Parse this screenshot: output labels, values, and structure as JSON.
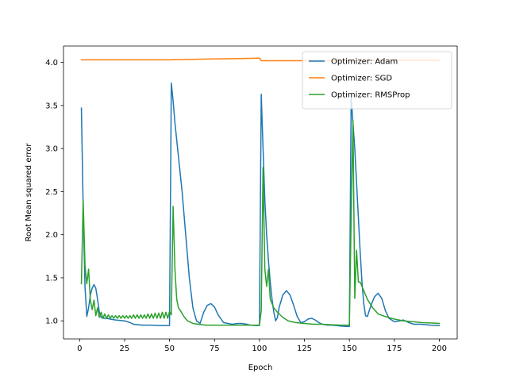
{
  "chart_data": {
    "type": "line",
    "title": "",
    "xlabel": "Epoch",
    "ylabel": "Root Mean squared error",
    "xlim": [
      -8.95,
      209.95
    ],
    "ylim": [
      0.79,
      4.19
    ],
    "xticks": [
      0,
      25,
      50,
      75,
      100,
      125,
      150,
      175,
      200
    ],
    "yticks": [
      1.0,
      1.5,
      2.0,
      2.5,
      3.0,
      3.5,
      4.0
    ],
    "xtick_labels": [
      "0",
      "25",
      "50",
      "75",
      "100",
      "125",
      "150",
      "175",
      "200"
    ],
    "ytick_labels": [
      "1.0",
      "1.5",
      "2.0",
      "2.5",
      "3.0",
      "3.5",
      "4.0"
    ],
    "grid": false,
    "legend_position": "top-right",
    "series": [
      {
        "name": "Optimizer: Adam",
        "color": "#1f77b4",
        "points": [
          [
            1,
            3.47
          ],
          [
            2,
            2.3
          ],
          [
            3,
            1.4
          ],
          [
            4,
            1.05
          ],
          [
            5,
            1.15
          ],
          [
            6,
            1.3
          ],
          [
            7,
            1.38
          ],
          [
            8,
            1.42
          ],
          [
            9,
            1.38
          ],
          [
            10,
            1.25
          ],
          [
            11,
            1.1
          ],
          [
            12,
            1.04
          ],
          [
            13,
            1.03
          ],
          [
            14,
            1.03
          ],
          [
            15,
            1.03
          ],
          [
            17,
            1.02
          ],
          [
            20,
            1.01
          ],
          [
            25,
            1.0
          ],
          [
            28,
            0.98
          ],
          [
            30,
            0.96
          ],
          [
            35,
            0.95
          ],
          [
            40,
            0.95
          ],
          [
            45,
            0.945
          ],
          [
            50,
            0.945
          ],
          [
            51,
            3.76
          ],
          [
            52,
            3.55
          ],
          [
            53,
            3.3
          ],
          [
            55,
            2.9
          ],
          [
            57,
            2.5
          ],
          [
            59,
            2.0
          ],
          [
            61,
            1.5
          ],
          [
            63,
            1.15
          ],
          [
            65,
            1.0
          ],
          [
            67,
            0.97
          ],
          [
            69,
            1.1
          ],
          [
            71,
            1.18
          ],
          [
            73,
            1.2
          ],
          [
            75,
            1.16
          ],
          [
            77,
            1.07
          ],
          [
            80,
            0.98
          ],
          [
            85,
            0.96
          ],
          [
            88,
            0.97
          ],
          [
            90,
            0.97
          ],
          [
            93,
            0.96
          ],
          [
            95,
            0.95
          ],
          [
            98,
            0.945
          ],
          [
            100,
            0.945
          ],
          [
            101,
            3.63
          ],
          [
            102,
            3.0
          ],
          [
            103,
            2.4
          ],
          [
            104,
            2.0
          ],
          [
            105,
            1.7
          ],
          [
            106,
            1.45
          ],
          [
            107,
            1.25
          ],
          [
            108,
            1.1
          ],
          [
            109,
            1.0
          ],
          [
            110,
            1.04
          ],
          [
            111,
            1.16
          ],
          [
            113,
            1.3
          ],
          [
            115,
            1.35
          ],
          [
            117,
            1.3
          ],
          [
            119,
            1.18
          ],
          [
            121,
            1.05
          ],
          [
            123,
            0.98
          ],
          [
            125,
            0.99
          ],
          [
            127,
            1.02
          ],
          [
            129,
            1.03
          ],
          [
            131,
            1.01
          ],
          [
            133,
            0.98
          ],
          [
            135,
            0.96
          ],
          [
            138,
            0.95
          ],
          [
            140,
            0.95
          ],
          [
            143,
            0.945
          ],
          [
            145,
            0.94
          ],
          [
            148,
            0.935
          ],
          [
            150,
            0.935
          ],
          [
            151,
            3.6
          ],
          [
            152,
            3.3
          ],
          [
            153,
            3.0
          ],
          [
            154,
            2.6
          ],
          [
            155,
            2.2
          ],
          [
            156,
            1.8
          ],
          [
            157,
            1.45
          ],
          [
            158,
            1.2
          ],
          [
            159,
            1.06
          ],
          [
            160,
            1.05
          ],
          [
            162,
            1.18
          ],
          [
            164,
            1.28
          ],
          [
            166,
            1.32
          ],
          [
            168,
            1.26
          ],
          [
            170,
            1.12
          ],
          [
            172,
            1.03
          ],
          [
            175,
            0.99
          ],
          [
            178,
            1.0
          ],
          [
            180,
            1.01
          ],
          [
            183,
            0.98
          ],
          [
            186,
            0.96
          ],
          [
            190,
            0.96
          ],
          [
            195,
            0.95
          ],
          [
            200,
            0.945
          ]
        ]
      },
      {
        "name": "Optimizer: SGD",
        "color": "#ff7f0e",
        "points": [
          [
            1,
            4.03
          ],
          [
            25,
            4.03
          ],
          [
            50,
            4.03
          ],
          [
            60,
            4.035
          ],
          [
            75,
            4.04
          ],
          [
            90,
            4.045
          ],
          [
            100,
            4.05
          ],
          [
            101,
            4.02
          ],
          [
            125,
            4.02
          ],
          [
            150,
            4.02
          ],
          [
            175,
            4.025
          ],
          [
            200,
            4.025
          ]
        ]
      },
      {
        "name": "Optimizer: RMSProp",
        "color": "#2ca02c",
        "points": [
          [
            1,
            1.43
          ],
          [
            2,
            2.4
          ],
          [
            3,
            1.65
          ],
          [
            4,
            1.43
          ],
          [
            5,
            1.6
          ],
          [
            6,
            1.24
          ],
          [
            7,
            1.13
          ],
          [
            8,
            1.24
          ],
          [
            9,
            1.06
          ],
          [
            10,
            1.15
          ],
          [
            11,
            1.04
          ],
          [
            12,
            1.1
          ],
          [
            13,
            1.03
          ],
          [
            14,
            1.08
          ],
          [
            15,
            1.03
          ],
          [
            16,
            1.07
          ],
          [
            17,
            1.03
          ],
          [
            18,
            1.06
          ],
          [
            19,
            1.03
          ],
          [
            20,
            1.06
          ],
          [
            21,
            1.03
          ],
          [
            22,
            1.06
          ],
          [
            23,
            1.03
          ],
          [
            24,
            1.06
          ],
          [
            25,
            1.03
          ],
          [
            26,
            1.06
          ],
          [
            27,
            1.03
          ],
          [
            28,
            1.06
          ],
          [
            29,
            1.03
          ],
          [
            30,
            1.07
          ],
          [
            31,
            1.03
          ],
          [
            32,
            1.07
          ],
          [
            33,
            1.03
          ],
          [
            34,
            1.07
          ],
          [
            35,
            1.03
          ],
          [
            36,
            1.07
          ],
          [
            37,
            1.03
          ],
          [
            38,
            1.08
          ],
          [
            39,
            1.03
          ],
          [
            40,
            1.08
          ],
          [
            41,
            1.03
          ],
          [
            42,
            1.09
          ],
          [
            43,
            1.03
          ],
          [
            44,
            1.09
          ],
          [
            45,
            1.03
          ],
          [
            46,
            1.1
          ],
          [
            47,
            1.03
          ],
          [
            48,
            1.1
          ],
          [
            49,
            1.03
          ],
          [
            50,
            1.11
          ],
          [
            51,
            1.07
          ],
          [
            52,
            2.33
          ],
          [
            53,
            1.6
          ],
          [
            54,
            1.25
          ],
          [
            55,
            1.15
          ],
          [
            56,
            1.12
          ],
          [
            58,
            1.05
          ],
          [
            60,
            1.0
          ],
          [
            63,
            0.97
          ],
          [
            66,
            0.96
          ],
          [
            70,
            0.95
          ],
          [
            75,
            0.95
          ],
          [
            80,
            0.95
          ],
          [
            85,
            0.95
          ],
          [
            90,
            0.95
          ],
          [
            95,
            0.95
          ],
          [
            100,
            0.95
          ],
          [
            101,
            1.12
          ],
          [
            102,
            2.78
          ],
          [
            103,
            1.6
          ],
          [
            104,
            1.4
          ],
          [
            105,
            1.6
          ],
          [
            106,
            1.25
          ],
          [
            108,
            1.15
          ],
          [
            110,
            1.1
          ],
          [
            113,
            1.04
          ],
          [
            116,
            1.0
          ],
          [
            120,
            0.98
          ],
          [
            125,
            0.97
          ],
          [
            130,
            0.96
          ],
          [
            135,
            0.96
          ],
          [
            140,
            0.955
          ],
          [
            145,
            0.95
          ],
          [
            150,
            0.95
          ],
          [
            151,
            2.2
          ],
          [
            152,
            3.33
          ],
          [
            153,
            1.26
          ],
          [
            154,
            1.82
          ],
          [
            155,
            1.45
          ],
          [
            156,
            1.45
          ],
          [
            158,
            1.35
          ],
          [
            160,
            1.25
          ],
          [
            163,
            1.15
          ],
          [
            166,
            1.08
          ],
          [
            170,
            1.05
          ],
          [
            175,
            1.02
          ],
          [
            180,
            1.0
          ],
          [
            185,
            0.99
          ],
          [
            190,
            0.98
          ],
          [
            195,
            0.975
          ],
          [
            200,
            0.97
          ]
        ]
      }
    ]
  }
}
